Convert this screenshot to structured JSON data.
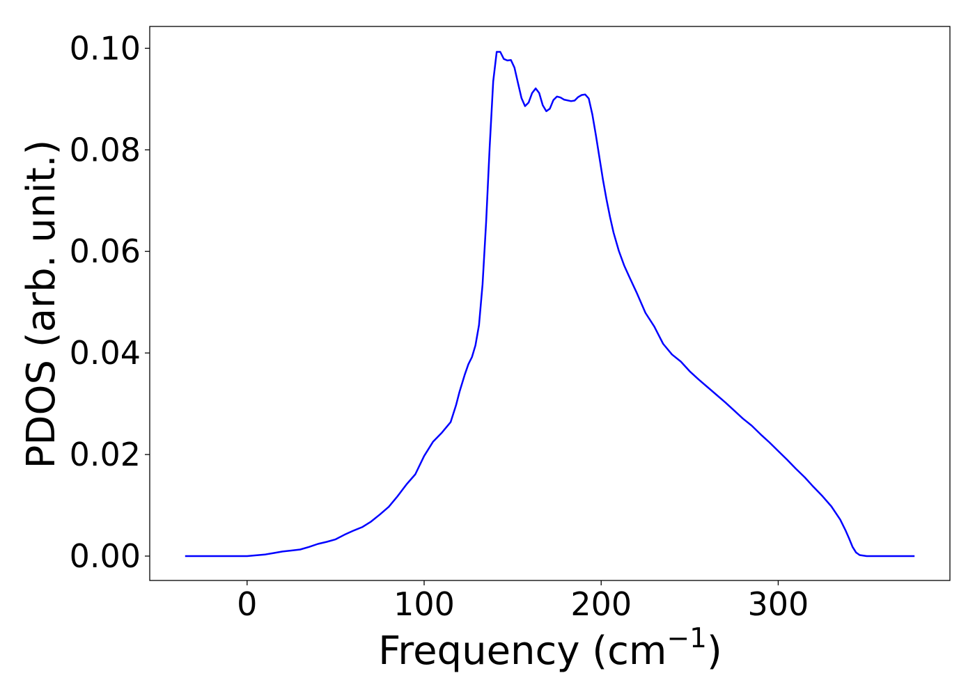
{
  "chart_data": {
    "type": "line",
    "title": "",
    "xlabel": "Frequency (cm",
    "xlabel_exponent": "−1",
    "xlabel_close": ")",
    "ylabel": "PDOS (arb. unit.)",
    "xlim": [
      -55,
      397
    ],
    "ylim": [
      -0.0048,
      0.1043
    ],
    "xticks": [
      0,
      100,
      200,
      300
    ],
    "xtick_labels": [
      "0",
      "100",
      "200",
      "300"
    ],
    "yticks": [
      0.0,
      0.02,
      0.04,
      0.06,
      0.08,
      0.1
    ],
    "ytick_labels": [
      "0.00",
      "0.02",
      "0.04",
      "0.06",
      "0.08",
      "0.10"
    ],
    "grid": false,
    "colors": {
      "line": "#0000ff",
      "axes": "#000000"
    },
    "series": [
      {
        "x": [
          -35,
          0,
          10,
          15,
          20,
          25,
          30,
          35,
          40,
          45,
          50,
          55,
          60,
          65,
          70,
          75,
          80,
          85,
          90,
          95,
          100,
          105,
          110,
          115,
          118,
          120,
          123,
          125,
          127,
          129,
          131,
          133,
          135,
          137,
          139,
          141,
          143,
          145,
          147,
          149,
          151,
          153,
          155,
          157,
          159,
          161,
          163,
          165,
          167,
          169,
          171,
          173,
          175,
          177,
          179,
          183,
          185,
          187,
          189,
          191,
          193,
          195,
          197,
          199,
          201,
          203,
          205,
          207,
          210,
          213,
          216,
          220,
          225,
          230,
          235,
          240,
          245,
          250,
          255,
          260,
          265,
          270,
          275,
          280,
          285,
          290,
          295,
          300,
          305,
          310,
          315,
          320,
          325,
          330,
          335,
          338,
          340,
          342,
          344,
          346,
          348,
          350,
          355,
          360,
          377
        ],
        "y": [
          0.0,
          0.0,
          0.0003,
          0.0006,
          0.0009,
          0.0011,
          0.0013,
          0.0018,
          0.0024,
          0.0028,
          0.0033,
          0.0042,
          0.005,
          0.0057,
          0.0068,
          0.0082,
          0.0097,
          0.0118,
          0.0141,
          0.0161,
          0.0197,
          0.0225,
          0.0243,
          0.0264,
          0.0297,
          0.0324,
          0.0358,
          0.0378,
          0.0392,
          0.0415,
          0.0455,
          0.0535,
          0.0657,
          0.0805,
          0.0935,
          0.0993,
          0.0993,
          0.0979,
          0.0976,
          0.0977,
          0.0962,
          0.0932,
          0.0902,
          0.0886,
          0.0893,
          0.0912,
          0.0921,
          0.0912,
          0.0888,
          0.0876,
          0.0881,
          0.0898,
          0.0905,
          0.0903,
          0.0899,
          0.0896,
          0.0897,
          0.0904,
          0.0908,
          0.0909,
          0.0901,
          0.087,
          0.0829,
          0.0785,
          0.0741,
          0.0703,
          0.0668,
          0.0637,
          0.0601,
          0.0572,
          0.0549,
          0.0519,
          0.0479,
          0.0452,
          0.0418,
          0.0397,
          0.0383,
          0.0364,
          0.0348,
          0.0333,
          0.0318,
          0.0303,
          0.0287,
          0.0271,
          0.0257,
          0.024,
          0.0224,
          0.0207,
          0.019,
          0.0172,
          0.0155,
          0.0136,
          0.0118,
          0.0098,
          0.0072,
          0.0051,
          0.0035,
          0.0018,
          0.0007,
          0.0002,
          0.0001,
          0.0,
          0.0,
          0.0,
          0.0
        ]
      }
    ]
  }
}
